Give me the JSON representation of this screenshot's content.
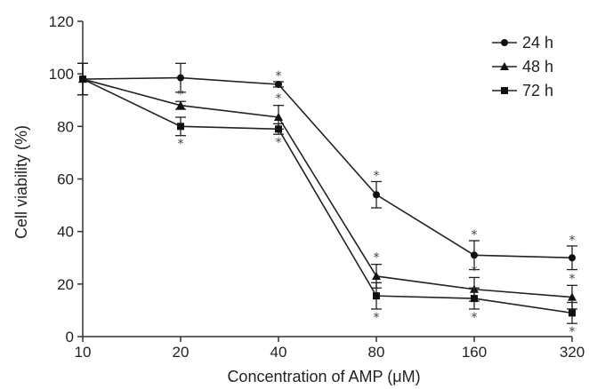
{
  "chart_data": {
    "type": "line",
    "title": "",
    "xlabel": "Concentration of AMP (μM)",
    "ylabel": "Cell viability (%)",
    "categories": [
      "10",
      "20",
      "40",
      "80",
      "160",
      "320"
    ],
    "ylim": [
      0,
      120
    ],
    "yticks": [
      0,
      20,
      40,
      60,
      80,
      100,
      120
    ],
    "grid": false,
    "legend_position": "top-right",
    "significance_marker": "*",
    "series": [
      {
        "name": "24 h",
        "marker": "circle",
        "values": [
          98,
          98.5,
          96,
          54,
          31,
          30
        ],
        "errors": [
          6,
          5.5,
          1,
          5,
          5.5,
          4.5
        ],
        "significant": [
          false,
          false,
          true,
          true,
          true,
          true
        ]
      },
      {
        "name": "48 h",
        "marker": "triangle",
        "values": [
          98,
          88,
          83.5,
          23,
          18,
          15
        ],
        "errors": [
          6,
          1.5,
          4.5,
          4.5,
          4.5,
          4.5
        ],
        "significant": [
          false,
          true,
          true,
          true,
          true,
          true
        ]
      },
      {
        "name": "72 h",
        "marker": "square",
        "values": [
          98,
          80,
          79,
          15.5,
          14.5,
          9
        ],
        "errors": [
          6,
          3.5,
          2,
          5,
          4,
          4
        ],
        "significant": [
          false,
          true,
          true,
          true,
          true,
          true
        ]
      }
    ]
  }
}
